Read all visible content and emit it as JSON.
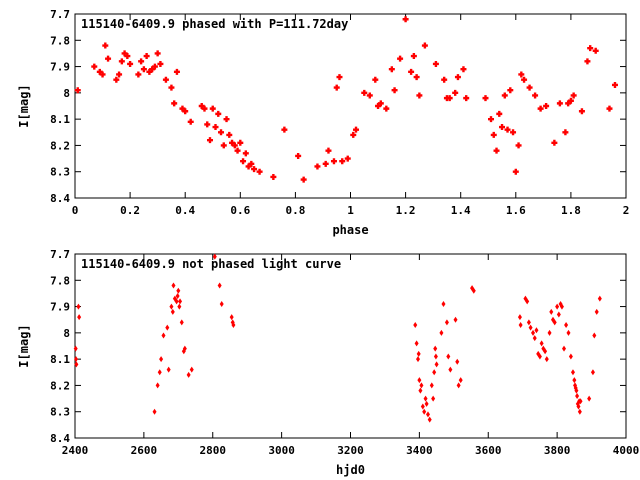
{
  "chart_data": [
    {
      "type": "scatter",
      "title": "115140-6409.9 phased with P=111.72day",
      "xlabel": "phase",
      "ylabel": "I[mag]",
      "xlim": [
        0,
        2
      ],
      "ylim": [
        8.4,
        7.7
      ],
      "y_inverted": true,
      "xticks": [
        "0",
        "0.2",
        "0.4",
        "0.6",
        "0.8",
        "1",
        "1.2",
        "1.4",
        "1.6",
        "1.8",
        "2"
      ],
      "yticks": [
        "7.7",
        "7.8",
        "7.9",
        "8",
        "8.1",
        "8.2",
        "8.3",
        "8.4"
      ],
      "marker": "cross",
      "color": "#ff0000",
      "grid": false,
      "x": [
        0.01,
        0.07,
        0.09,
        0.1,
        0.11,
        0.12,
        0.15,
        0.16,
        0.17,
        0.18,
        0.19,
        0.2,
        0.23,
        0.24,
        0.25,
        0.26,
        0.27,
        0.28,
        0.29,
        0.3,
        0.31,
        0.33,
        0.35,
        0.36,
        0.37,
        0.39,
        0.4,
        0.42,
        0.46,
        0.47,
        0.48,
        0.49,
        0.5,
        0.51,
        0.52,
        0.53,
        0.54,
        0.55,
        0.56,
        0.57,
        0.58,
        0.59,
        0.6,
        0.61,
        0.62,
        0.63,
        0.64,
        0.65,
        0.67,
        0.72,
        0.76,
        0.81,
        0.83,
        0.88,
        0.91,
        0.92,
        0.94,
        0.95,
        0.96,
        0.97,
        0.99,
        1.01,
        1.02,
        1.05,
        1.07,
        1.09,
        1.1,
        1.11,
        1.13,
        1.15,
        1.16,
        1.18,
        1.2,
        1.22,
        1.23,
        1.24,
        1.25,
        1.27,
        1.31,
        1.34,
        1.35,
        1.36,
        1.38,
        1.39,
        1.41,
        1.42,
        1.49,
        1.51,
        1.52,
        1.53,
        1.54,
        1.55,
        1.56,
        1.57,
        1.58,
        1.59,
        1.6,
        1.61,
        1.62,
        1.63,
        1.65,
        1.67,
        1.69,
        1.71,
        1.74,
        1.76,
        1.78,
        1.79,
        1.8,
        1.81,
        1.84,
        1.86,
        1.87,
        1.89,
        1.94,
        1.96
      ],
      "y": [
        7.99,
        7.9,
        7.92,
        7.93,
        7.82,
        7.87,
        7.95,
        7.93,
        7.88,
        7.85,
        7.86,
        7.89,
        7.93,
        7.88,
        7.91,
        7.86,
        7.92,
        7.91,
        7.9,
        7.85,
        7.89,
        7.95,
        7.98,
        8.04,
        7.92,
        8.06,
        8.07,
        8.11,
        8.05,
        8.06,
        8.12,
        8.18,
        8.06,
        8.13,
        8.08,
        8.15,
        8.2,
        8.1,
        8.16,
        8.19,
        8.2,
        8.22,
        8.19,
        8.26,
        8.23,
        8.28,
        8.27,
        8.29,
        8.3,
        8.32,
        8.14,
        8.24,
        8.33,
        8.28,
        8.27,
        8.22,
        8.26,
        7.98,
        7.94,
        8.26,
        8.25,
        8.16,
        8.14,
        8.0,
        8.01,
        7.95,
        8.05,
        8.04,
        8.06,
        7.91,
        7.99,
        7.87,
        7.72,
        7.92,
        7.86,
        7.94,
        8.01,
        7.82,
        7.89,
        7.95,
        8.02,
        8.02,
        8.0,
        7.94,
        7.91,
        8.02,
        8.02,
        8.1,
        8.16,
        8.22,
        8.08,
        8.13,
        8.01,
        8.14,
        7.99,
        8.15,
        8.3,
        8.2,
        7.93,
        7.95,
        7.98,
        8.01,
        8.06,
        8.05,
        8.19,
        8.04,
        8.15,
        8.04,
        8.03,
        8.01,
        8.07,
        7.88,
        7.83,
        7.84,
        8.06,
        7.97
      ],
      "annotations": []
    },
    {
      "type": "scatter",
      "title": "115140-6409.9 not phased light curve",
      "xlabel": "hjd0",
      "ylabel": "I[mag]",
      "xlim": [
        2400,
        4000
      ],
      "ylim": [
        8.4,
        7.7
      ],
      "y_inverted": true,
      "xticks": [
        "2400",
        "2600",
        "2800",
        "3000",
        "3200",
        "3400",
        "3600",
        "3800",
        "4000"
      ],
      "yticks": [
        "7.7",
        "7.8",
        "7.9",
        "8",
        "8.1",
        "8.2",
        "8.3",
        "8.4"
      ],
      "marker": "diamond",
      "color": "#ff0000",
      "grid": false,
      "x": [
        2402,
        2403,
        2404,
        2410,
        2412,
        2631,
        2640,
        2646,
        2650,
        2657,
        2668,
        2672,
        2680,
        2684,
        2686,
        2690,
        2695,
        2698,
        2700,
        2703,
        2705,
        2710,
        2716,
        2719,
        2730,
        2739,
        2806,
        2820,
        2826,
        2855,
        2858,
        2860,
        3388,
        3392,
        3396,
        3398,
        3400,
        3403,
        3406,
        3410,
        3414,
        3418,
        3421,
        3425,
        3430,
        3436,
        3440,
        3443,
        3446,
        3448,
        3450,
        3464,
        3470,
        3480,
        3484,
        3490,
        3505,
        3510,
        3514,
        3520,
        3553,
        3558,
        3692,
        3694,
        3708,
        3713,
        3718,
        3723,
        3730,
        3735,
        3740,
        3745,
        3750,
        3755,
        3760,
        3765,
        3770,
        3778,
        3783,
        3788,
        3793,
        3800,
        3805,
        3810,
        3814,
        3820,
        3826,
        3833,
        3840,
        3846,
        3850,
        3852,
        3854,
        3856,
        3858,
        3860,
        3862,
        3864,
        3866,
        3868,
        3893,
        3904,
        3908,
        3915,
        3924
      ],
      "y": [
        8.06,
        8.1,
        8.12,
        7.9,
        7.94,
        8.3,
        8.2,
        8.15,
        8.1,
        8.01,
        7.98,
        8.14,
        7.9,
        7.92,
        7.82,
        7.87,
        7.88,
        7.86,
        7.84,
        7.9,
        7.88,
        7.96,
        8.07,
        8.06,
        8.16,
        8.14,
        7.71,
        7.82,
        7.89,
        7.94,
        7.96,
        7.97,
        7.97,
        8.04,
        8.1,
        8.08,
        8.18,
        8.22,
        8.2,
        8.28,
        8.3,
        8.25,
        8.27,
        8.31,
        8.33,
        8.2,
        8.25,
        8.15,
        8.06,
        8.09,
        8.12,
        8.0,
        7.89,
        7.96,
        8.09,
        8.14,
        7.95,
        8.11,
        8.2,
        8.18,
        7.83,
        7.84,
        7.94,
        7.97,
        7.87,
        7.88,
        7.96,
        7.98,
        8.0,
        8.02,
        7.99,
        8.08,
        8.09,
        8.04,
        8.06,
        8.07,
        8.1,
        8.0,
        7.92,
        7.95,
        7.96,
        7.9,
        7.93,
        7.89,
        7.9,
        8.06,
        7.97,
        8.0,
        8.09,
        8.15,
        8.18,
        8.2,
        8.21,
        8.22,
        8.24,
        8.27,
        8.28,
        8.26,
        8.3,
        8.26,
        8.25,
        8.15,
        8.01,
        7.92,
        7.87
      ],
      "annotations": []
    }
  ]
}
